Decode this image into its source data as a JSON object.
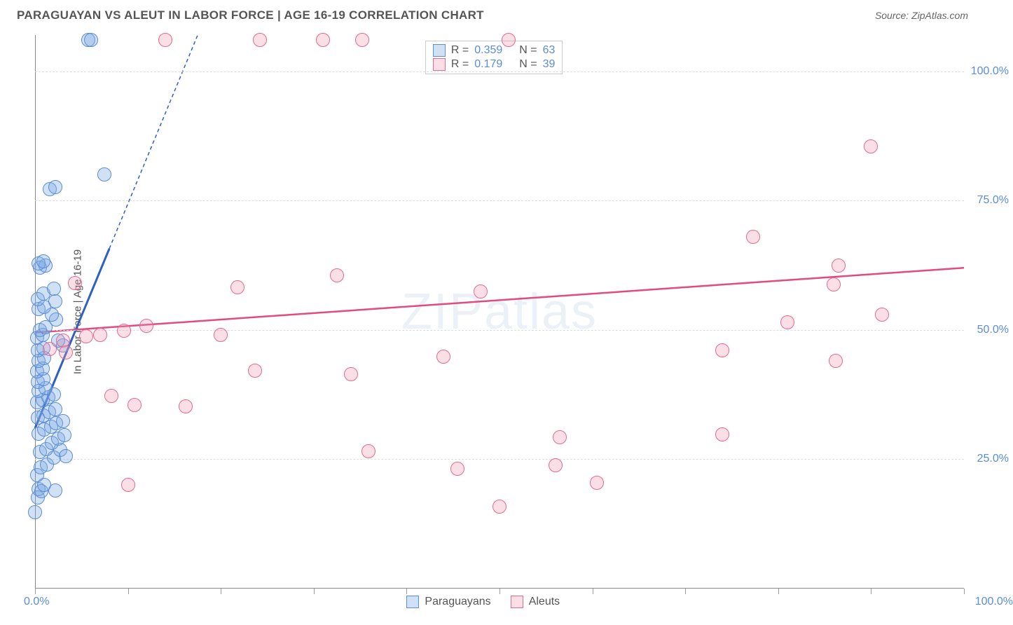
{
  "header": {
    "title": "PARAGUAYAN VS ALEUT IN LABOR FORCE | AGE 16-19 CORRELATION CHART",
    "source_label": "Source: ZipAtlas.com"
  },
  "watermark": "ZIPatlas",
  "chart": {
    "type": "scatter",
    "background_color": "#ffffff",
    "grid_color": "#dddddd",
    "axis_color": "#888888",
    "ylabel": "In Labor Force | Age 16-19",
    "label_fontsize": 15,
    "tick_fontsize": 16,
    "tick_color": "#5a8dd6",
    "xlim": [
      0,
      100
    ],
    "ylim": [
      0,
      107
    ],
    "x_ticks": [
      0,
      10,
      20,
      30,
      40,
      50,
      60,
      70,
      80,
      90,
      100
    ],
    "y_gridlines": [
      25,
      50,
      75,
      100
    ],
    "y_tick_labels": [
      "25.0%",
      "50.0%",
      "75.0%",
      "100.0%"
    ],
    "x_tick_label_left": "0.0%",
    "x_tick_label_right": "100.0%",
    "marker_radius": 10,
    "marker_border_width": 1.5,
    "series": [
      {
        "name": "Paraguayans",
        "fill": "rgba(122,170,225,0.35)",
        "stroke": "#5a8dd6",
        "R": "0.359",
        "N": "63",
        "trend": {
          "x0": 0,
          "y0": 31,
          "x1": 100,
          "y1": 465,
          "solid_until_x": 8,
          "stroke": "#2f5fc2",
          "stroke_width": 3,
          "dash": "5,4"
        },
        "points": [
          [
            0.0,
            14.8
          ],
          [
            0.3,
            17.6
          ],
          [
            0.4,
            19.2
          ],
          [
            0.7,
            18.8
          ],
          [
            1.0,
            20.0
          ],
          [
            2.2,
            18.9
          ],
          [
            0.2,
            22.0
          ],
          [
            0.6,
            23.5
          ],
          [
            1.3,
            24.0
          ],
          [
            2.0,
            25.3
          ],
          [
            2.7,
            26.8
          ],
          [
            3.3,
            25.6
          ],
          [
            0.5,
            26.4
          ],
          [
            1.2,
            27.0
          ],
          [
            1.8,
            28.2
          ],
          [
            2.5,
            29.0
          ],
          [
            3.2,
            29.6
          ],
          [
            0.4,
            30.0
          ],
          [
            1.0,
            30.8
          ],
          [
            1.7,
            31.3
          ],
          [
            2.3,
            31.9
          ],
          [
            3.0,
            32.4
          ],
          [
            0.3,
            33.0
          ],
          [
            0.9,
            33.5
          ],
          [
            1.5,
            34.1
          ],
          [
            2.2,
            34.7
          ],
          [
            0.2,
            36.0
          ],
          [
            0.8,
            36.5
          ],
          [
            1.4,
            37.0
          ],
          [
            2.0,
            37.5
          ],
          [
            0.4,
            38.2
          ],
          [
            1.1,
            38.8
          ],
          [
            0.3,
            40.0
          ],
          [
            0.9,
            40.5
          ],
          [
            0.2,
            42.0
          ],
          [
            0.8,
            42.5
          ],
          [
            0.4,
            44.0
          ],
          [
            1.0,
            44.5
          ],
          [
            0.3,
            46.0
          ],
          [
            0.9,
            46.5
          ],
          [
            3.0,
            47.0
          ],
          [
            2.5,
            48.0
          ],
          [
            0.2,
            48.5
          ],
          [
            0.8,
            49.0
          ],
          [
            0.5,
            50.0
          ],
          [
            1.1,
            50.5
          ],
          [
            2.3,
            52.0
          ],
          [
            1.8,
            53.0
          ],
          [
            0.4,
            54.0
          ],
          [
            1.0,
            54.5
          ],
          [
            2.2,
            55.5
          ],
          [
            0.3,
            56.0
          ],
          [
            0.9,
            57.0
          ],
          [
            2.0,
            58.0
          ],
          [
            0.5,
            62.0
          ],
          [
            1.1,
            62.5
          ],
          [
            0.4,
            62.8
          ],
          [
            0.9,
            63.2
          ],
          [
            1.6,
            77.2
          ],
          [
            2.2,
            77.6
          ],
          [
            7.5,
            80.0
          ],
          [
            5.7,
            106.0
          ],
          [
            6.0,
            106.0
          ]
        ]
      },
      {
        "name": "Aleuts",
        "fill": "rgba(240,150,175,0.30)",
        "stroke": "#e66a91",
        "R": "0.179",
        "N": "39",
        "trend": {
          "x0": 0,
          "y0": 49.5,
          "x1": 100,
          "y1": 62,
          "stroke": "#e24b80",
          "stroke_width": 2.5
        },
        "points": [
          [
            1.6,
            46.3
          ],
          [
            3.0,
            48.0
          ],
          [
            3.3,
            45.6
          ],
          [
            5.5,
            48.8
          ],
          [
            4.3,
            59.0
          ],
          [
            7.0,
            49.0
          ],
          [
            9.6,
            49.9
          ],
          [
            8.2,
            37.2
          ],
          [
            10.7,
            35.5
          ],
          [
            12.0,
            50.8
          ],
          [
            10.0,
            20.0
          ],
          [
            16.2,
            35.2
          ],
          [
            20.0,
            49.0
          ],
          [
            21.8,
            58.2
          ],
          [
            14.0,
            106.0
          ],
          [
            24.2,
            106.0
          ],
          [
            23.7,
            42.1
          ],
          [
            31.0,
            106.0
          ],
          [
            34.0,
            41.5
          ],
          [
            35.2,
            106.0
          ],
          [
            32.5,
            60.5
          ],
          [
            35.9,
            26.5
          ],
          [
            44.0,
            44.8
          ],
          [
            48.0,
            57.4
          ],
          [
            45.5,
            23.2
          ],
          [
            51.0,
            106.0
          ],
          [
            50.0,
            15.9
          ],
          [
            56.5,
            29.2
          ],
          [
            60.5,
            20.4
          ],
          [
            56.0,
            23.8
          ],
          [
            74.0,
            46.0
          ],
          [
            77.3,
            68.0
          ],
          [
            74.0,
            29.8
          ],
          [
            81.0,
            51.5
          ],
          [
            86.5,
            62.5
          ],
          [
            86.0,
            58.8
          ],
          [
            91.2,
            53.0
          ],
          [
            86.2,
            44.0
          ],
          [
            90.0,
            85.5
          ]
        ]
      }
    ],
    "legend_top": {
      "rows": [
        {
          "swatch_fill": "rgba(122,170,225,0.35)",
          "swatch_stroke": "#5a8dd6",
          "R_label": "R =",
          "R_val": "0.359",
          "N_label": "N =",
          "N_val": "63"
        },
        {
          "swatch_fill": "rgba(240,150,175,0.30)",
          "swatch_stroke": "#e66a91",
          "R_label": "R =",
          "R_val": "0.179",
          "N_label": "N =",
          "N_val": "39"
        }
      ]
    },
    "legend_bottom": {
      "items": [
        {
          "swatch_fill": "rgba(122,170,225,0.35)",
          "swatch_stroke": "#5a8dd6",
          "label": "Paraguayans"
        },
        {
          "swatch_fill": "rgba(240,150,175,0.30)",
          "swatch_stroke": "#e66a91",
          "label": "Aleuts"
        }
      ]
    }
  }
}
